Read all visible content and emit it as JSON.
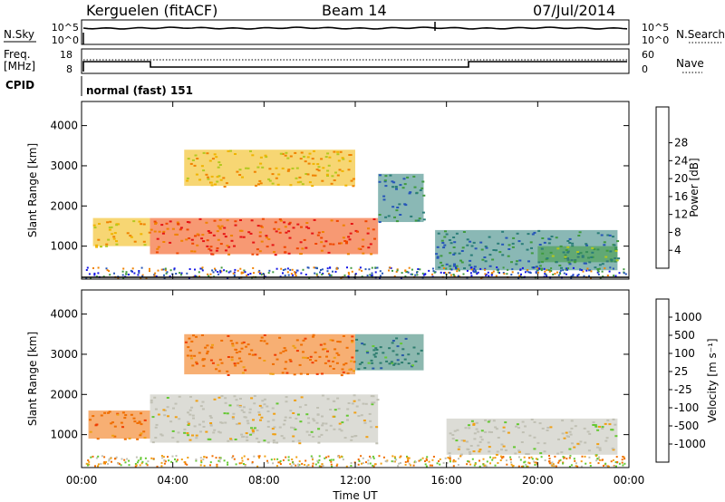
{
  "header": {
    "radar": "Kerguelen (fitACF)",
    "beam": "Beam 14",
    "date": "07/Jul/2014"
  },
  "noise_panel": {
    "left_label": "N.Sky",
    "right_label": "N.Search",
    "left_ticks": [
      "10^5",
      "10^0"
    ],
    "right_ticks": [
      "10^5",
      "10^0"
    ]
  },
  "freq_panel": {
    "left_label_1": "Freq.",
    "left_label_2": "[MHz]",
    "left_ticks": [
      "18",
      "8"
    ],
    "right_label": "Nave",
    "right_ticks": [
      "60",
      "0"
    ]
  },
  "cpid": {
    "label": "CPID",
    "value": "normal (fast) 151"
  },
  "chart_data": [
    {
      "type": "heatmap",
      "title": "",
      "xlabel": "",
      "ylabel": "Slant Range [km]",
      "x_ticks": [
        "00:00",
        "04:00",
        "08:00",
        "12:00",
        "16:00",
        "20:00",
        "00:00"
      ],
      "y_ticks": [
        1000,
        2000,
        3000,
        4000
      ],
      "xlim_hours": [
        0,
        24
      ],
      "ylim": [
        180,
        4600
      ],
      "colorbar": {
        "label": "Power [dB]",
        "ticks": [
          "4",
          "8",
          "12",
          "16",
          "20",
          "24",
          "28"
        ],
        "range": [
          0,
          30
        ],
        "colors": [
          "#1414e6",
          "#2656b8",
          "#2a7d78",
          "#3f9a3f",
          "#b4c81e",
          "#f0b400",
          "#f08200",
          "#f04600",
          "#e61414"
        ]
      },
      "regions": [
        {
          "t0": 0.5,
          "t1": 3.0,
          "r0": 1000,
          "r1": 1700,
          "value": 18
        },
        {
          "t0": 3.0,
          "t1": 13.0,
          "r0": 800,
          "r1": 1700,
          "value": 26
        },
        {
          "t0": 4.5,
          "t1": 12.0,
          "r0": 2500,
          "r1": 3400,
          "value": 20
        },
        {
          "t0": 13.0,
          "t1": 15.0,
          "r0": 1600,
          "r1": 2800,
          "value": 6
        },
        {
          "t0": 15.5,
          "t1": 23.5,
          "r0": 400,
          "r1": 1400,
          "value": 6
        },
        {
          "t0": 20.0,
          "t1": 23.5,
          "r0": 600,
          "r1": 1000,
          "value": 12
        }
      ]
    },
    {
      "type": "heatmap",
      "title": "",
      "xlabel": "Time UT",
      "ylabel": "Slant Range [km]",
      "x_ticks": [
        "00:00",
        "04:00",
        "08:00",
        "12:00",
        "16:00",
        "20:00",
        "00:00"
      ],
      "y_ticks": [
        1000,
        2000,
        3000,
        4000
      ],
      "xlim_hours": [
        0,
        24
      ],
      "ylim": [
        180,
        4600
      ],
      "colorbar": {
        "label": "Velocity [m s⁻¹]",
        "ticks": [
          "1000",
          "500",
          "100",
          "25",
          "-25",
          "-100",
          "-500",
          "-1000"
        ],
        "colors": [
          "#1e28c8",
          "#2a5aa8",
          "#2d7d6e",
          "#64c832",
          "#c0c0b4",
          "#f0a014",
          "#f06e00",
          "#f03c00",
          "#e61414"
        ]
      },
      "regions": [
        {
          "t0": 0.3,
          "t1": 3.0,
          "r0": 900,
          "r1": 1600,
          "value": -300
        },
        {
          "t0": 3.0,
          "t1": 13.0,
          "r0": 800,
          "r1": 2000,
          "value": 0
        },
        {
          "t0": 4.5,
          "t1": 12.0,
          "r0": 2500,
          "r1": 3500,
          "value": -300
        },
        {
          "t0": 12.0,
          "t1": 15.0,
          "r0": 2600,
          "r1": 3500,
          "value": 300
        },
        {
          "t0": 16.0,
          "t1": 23.5,
          "r0": 500,
          "r1": 1400,
          "value": 0
        }
      ]
    }
  ]
}
